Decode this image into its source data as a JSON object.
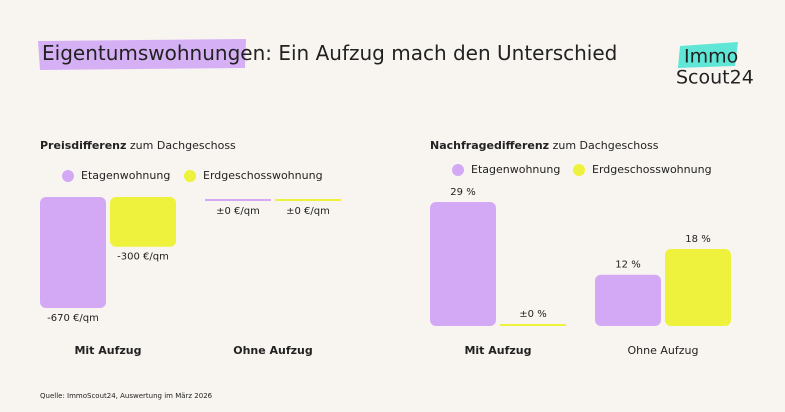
{
  "header": {
    "title_highlight": "Eigentumswohnungen:",
    "title_rest": "Ein Aufzug mach den Unterschied"
  },
  "logo": {
    "line1": "Immo",
    "line2": "Scout24"
  },
  "chart_data": [
    {
      "type": "bar",
      "title": {
        "bold": "Preisdifferenz",
        "rest": "zum Dachgeschoss"
      },
      "categories": [
        "Mit Aufzug",
        "Ohne Aufzug"
      ],
      "series": [
        {
          "name": "Etagenwohnung",
          "color": "#d3a8f4",
          "values": [
            -670,
            0
          ],
          "value_labels": [
            "-670 €/qm",
            "±0 €/qm"
          ]
        },
        {
          "name": "Erdgeschosswohnung",
          "color": "#eef23c",
          "values": [
            -300,
            0
          ],
          "value_labels": [
            "-300 €/qm",
            "±0 €/qm"
          ]
        }
      ]
    },
    {
      "type": "bar",
      "title": {
        "bold": "Nachfragedifferenz",
        "rest": "zum Dachgeschoss"
      },
      "categories": [
        "Mit Aufzug",
        "Ohne Aufzug"
      ],
      "series": [
        {
          "name": "Etagenwohnung",
          "color": "#d3a8f4",
          "values": [
            29,
            12
          ],
          "value_labels": [
            "29 %",
            "12 %"
          ]
        },
        {
          "name": "Erdgeschosswohnung",
          "color": "#eef23c",
          "values": [
            0,
            18
          ],
          "value_labels": [
            "±0 %",
            "18 %"
          ]
        }
      ]
    }
  ],
  "source": "Quelle: ImmoScout24, Auswertung im März 2026"
}
